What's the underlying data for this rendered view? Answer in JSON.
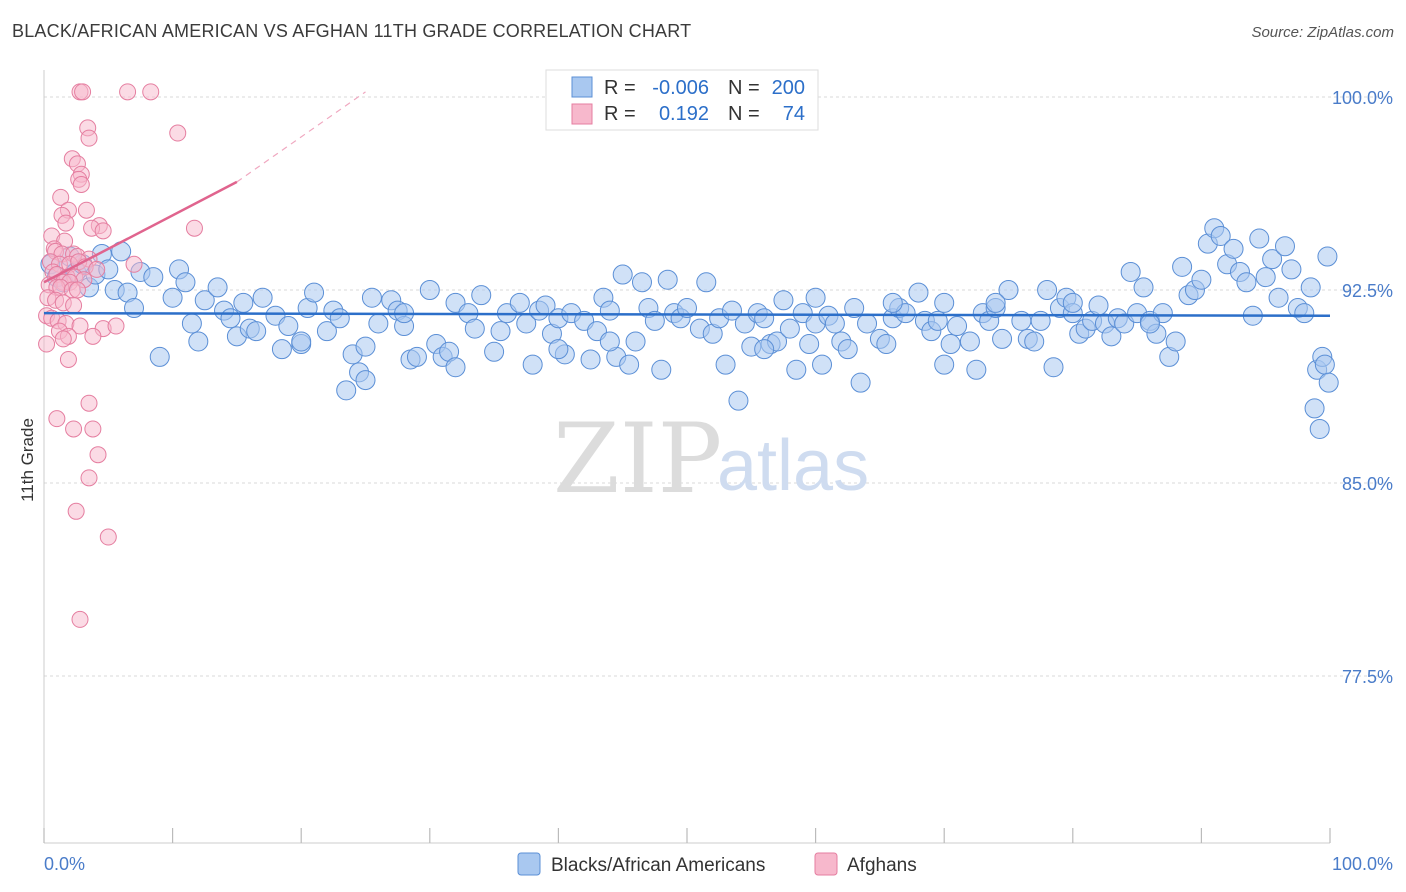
{
  "header": {
    "title": "BLACK/AFRICAN AMERICAN VS AFGHAN 11TH GRADE CORRELATION CHART",
    "source": "Source: ZipAtlas.com"
  },
  "watermark": {
    "zip": "ZIP",
    "atlas": "atlas"
  },
  "colors": {
    "blue_fill": "#a9c8f0",
    "blue_stroke": "#5b8fd6",
    "blue_line": "#2c6fc9",
    "pink_fill": "#f7b8cc",
    "pink_stroke": "#e57ea0",
    "pink_line": "#e0648e",
    "axis_text": "#4a7cc9",
    "grid": "#d9d9d9"
  },
  "legend": {
    "rows": [
      {
        "r_label": "R =",
        "r_value": "-0.006",
        "n_label": "N =",
        "n_value": "200"
      },
      {
        "r_label": "R =",
        "r_value": "0.192",
        "n_label": "N =",
        "n_value": "74"
      }
    ]
  },
  "chart_data": {
    "type": "scatter",
    "title": "BLACK/AFRICAN AMERICAN VS AFGHAN 11TH GRADE CORRELATION CHART",
    "xlabel": "",
    "ylabel": "11th Grade",
    "xlim": [
      0,
      100
    ],
    "ylim": [
      71.5,
      101.5
    ],
    "x_tick_labels": [
      "0.0%",
      "100.0%"
    ],
    "y_ticks": [
      77.5,
      85.0,
      92.5,
      100.0
    ],
    "y_tick_labels": [
      "77.5%",
      "85.0%",
      "92.5%",
      "100.0%"
    ],
    "series": [
      {
        "name": "Blacks/African Americans",
        "r": -0.006,
        "n": 200,
        "trend": {
          "x": [
            0,
            100
          ],
          "y": [
            91.6,
            91.5
          ]
        },
        "points": [
          [
            0.5,
            93.5
          ],
          [
            1.0,
            93.0
          ],
          [
            1.5,
            92.8
          ],
          [
            2.0,
            93.8
          ],
          [
            2.5,
            93.2
          ],
          [
            3.0,
            93.5
          ],
          [
            3.5,
            92.6
          ],
          [
            4.0,
            93.1
          ],
          [
            4.5,
            93.9
          ],
          [
            5.0,
            93.3
          ],
          [
            5.5,
            92.5
          ],
          [
            6.0,
            94.0
          ],
          [
            6.5,
            92.4
          ],
          [
            7.0,
            91.8
          ],
          [
            7.5,
            93.2
          ],
          [
            8.5,
            93.0
          ],
          [
            9.0,
            89.9
          ],
          [
            10.0,
            92.2
          ],
          [
            10.5,
            93.3
          ],
          [
            11.0,
            92.8
          ],
          [
            11.5,
            91.2
          ],
          [
            12.0,
            90.5
          ],
          [
            12.5,
            92.1
          ],
          [
            13.5,
            92.6
          ],
          [
            14.0,
            91.7
          ],
          [
            14.5,
            91.4
          ],
          [
            15.0,
            90.7
          ],
          [
            15.5,
            92.0
          ],
          [
            16.0,
            91.0
          ],
          [
            16.5,
            90.9
          ],
          [
            17.0,
            92.2
          ],
          [
            18.0,
            91.5
          ],
          [
            18.5,
            90.2
          ],
          [
            19.0,
            91.1
          ],
          [
            20.0,
            90.4
          ],
          [
            20.5,
            91.8
          ],
          [
            21.0,
            92.4
          ],
          [
            22.0,
            90.9
          ],
          [
            22.5,
            91.7
          ],
          [
            23.0,
            91.4
          ],
          [
            23.5,
            88.6
          ],
          [
            24.0,
            90.0
          ],
          [
            24.5,
            89.3
          ],
          [
            25.0,
            90.3
          ],
          [
            25.5,
            92.2
          ],
          [
            26.0,
            91.2
          ],
          [
            27.0,
            92.1
          ],
          [
            27.5,
            91.7
          ],
          [
            28.0,
            91.1
          ],
          [
            28.5,
            89.8
          ],
          [
            29.0,
            89.9
          ],
          [
            30.0,
            92.5
          ],
          [
            30.5,
            90.4
          ],
          [
            31.0,
            89.9
          ],
          [
            31.5,
            90.1
          ],
          [
            32.0,
            92.0
          ],
          [
            33.0,
            91.6
          ],
          [
            33.5,
            91.0
          ],
          [
            34.0,
            92.3
          ],
          [
            35.0,
            90.1
          ],
          [
            35.5,
            90.9
          ],
          [
            36.0,
            91.6
          ],
          [
            37.0,
            92.0
          ],
          [
            37.5,
            91.2
          ],
          [
            38.0,
            89.6
          ],
          [
            38.5,
            91.7
          ],
          [
            39.0,
            91.9
          ],
          [
            39.5,
            90.8
          ],
          [
            40.0,
            91.4
          ],
          [
            40.5,
            90.0
          ],
          [
            41.0,
            91.6
          ],
          [
            42.0,
            91.3
          ],
          [
            42.5,
            89.8
          ],
          [
            43.0,
            90.9
          ],
          [
            43.5,
            92.2
          ],
          [
            44.0,
            91.7
          ],
          [
            44.5,
            89.9
          ],
          [
            45.0,
            93.1
          ],
          [
            45.5,
            89.6
          ],
          [
            46.0,
            90.5
          ],
          [
            46.5,
            92.8
          ],
          [
            47.0,
            91.8
          ],
          [
            47.5,
            91.3
          ],
          [
            48.0,
            89.4
          ],
          [
            48.5,
            92.9
          ],
          [
            49.0,
            91.6
          ],
          [
            49.5,
            91.4
          ],
          [
            50.0,
            91.8
          ],
          [
            51.0,
            91.0
          ],
          [
            51.5,
            92.8
          ],
          [
            52.0,
            90.8
          ],
          [
            52.5,
            91.4
          ],
          [
            53.0,
            89.6
          ],
          [
            53.5,
            91.7
          ],
          [
            54.0,
            88.2
          ],
          [
            54.5,
            91.2
          ],
          [
            55.0,
            90.3
          ],
          [
            55.5,
            91.6
          ],
          [
            56.0,
            91.4
          ],
          [
            56.5,
            90.4
          ],
          [
            57.0,
            90.5
          ],
          [
            57.5,
            92.1
          ],
          [
            58.0,
            91.0
          ],
          [
            58.5,
            89.4
          ],
          [
            59.0,
            91.6
          ],
          [
            59.5,
            90.4
          ],
          [
            60.0,
            91.2
          ],
          [
            60.5,
            89.6
          ],
          [
            61.0,
            91.5
          ],
          [
            61.5,
            91.2
          ],
          [
            62.0,
            90.5
          ],
          [
            62.5,
            90.2
          ],
          [
            63.0,
            91.8
          ],
          [
            63.5,
            88.9
          ],
          [
            64.0,
            91.2
          ],
          [
            65.0,
            90.6
          ],
          [
            65.5,
            90.4
          ],
          [
            66.0,
            91.4
          ],
          [
            66.5,
            91.8
          ],
          [
            67.0,
            91.6
          ],
          [
            68.0,
            92.4
          ],
          [
            68.5,
            91.3
          ],
          [
            69.0,
            90.9
          ],
          [
            69.5,
            91.3
          ],
          [
            70.0,
            89.6
          ],
          [
            70.5,
            90.4
          ],
          [
            71.0,
            91.1
          ],
          [
            72.0,
            90.5
          ],
          [
            72.5,
            89.4
          ],
          [
            73.0,
            91.6
          ],
          [
            73.5,
            91.3
          ],
          [
            74.0,
            91.8
          ],
          [
            74.5,
            90.6
          ],
          [
            75.0,
            92.5
          ],
          [
            76.0,
            91.3
          ],
          [
            76.5,
            90.6
          ],
          [
            77.0,
            90.5
          ],
          [
            77.5,
            91.3
          ],
          [
            78.0,
            92.5
          ],
          [
            78.5,
            89.5
          ],
          [
            79.0,
            91.8
          ],
          [
            79.5,
            92.2
          ],
          [
            80.0,
            91.6
          ],
          [
            80.5,
            90.8
          ],
          [
            81.0,
            91.0
          ],
          [
            81.5,
            91.3
          ],
          [
            82.0,
            91.9
          ],
          [
            82.5,
            91.2
          ],
          [
            83.0,
            90.7
          ],
          [
            83.5,
            91.4
          ],
          [
            84.0,
            91.2
          ],
          [
            84.5,
            93.2
          ],
          [
            85.0,
            91.6
          ],
          [
            85.5,
            92.6
          ],
          [
            86.0,
            91.3
          ],
          [
            86.5,
            90.8
          ],
          [
            87.0,
            91.6
          ],
          [
            87.5,
            89.9
          ],
          [
            88.0,
            90.5
          ],
          [
            88.5,
            93.4
          ],
          [
            89.0,
            92.3
          ],
          [
            89.5,
            92.5
          ],
          [
            90.0,
            92.9
          ],
          [
            90.5,
            94.3
          ],
          [
            91.0,
            94.9
          ],
          [
            91.5,
            94.6
          ],
          [
            92.0,
            93.5
          ],
          [
            92.5,
            94.1
          ],
          [
            93.0,
            93.2
          ],
          [
            93.5,
            92.8
          ],
          [
            94.0,
            91.5
          ],
          [
            94.5,
            94.5
          ],
          [
            95.0,
            93.0
          ],
          [
            95.5,
            93.7
          ],
          [
            96.0,
            92.2
          ],
          [
            96.5,
            94.2
          ],
          [
            97.0,
            93.3
          ],
          [
            97.5,
            91.8
          ],
          [
            98.0,
            91.6
          ],
          [
            98.5,
            92.6
          ],
          [
            98.8,
            87.9
          ],
          [
            99.0,
            89.4
          ],
          [
            99.2,
            87.1
          ],
          [
            99.4,
            89.9
          ],
          [
            99.6,
            89.6
          ],
          [
            99.8,
            93.8
          ],
          [
            99.9,
            88.9
          ],
          [
            20.0,
            90.5
          ],
          [
            32.0,
            89.5
          ],
          [
            40.0,
            90.2
          ],
          [
            25.0,
            89.0
          ],
          [
            28.0,
            91.6
          ],
          [
            44.0,
            90.5
          ],
          [
            56.0,
            90.2
          ],
          [
            60.0,
            92.2
          ],
          [
            66.0,
            92.0
          ],
          [
            70.0,
            92.0
          ],
          [
            74.0,
            92.0
          ],
          [
            80.0,
            92.0
          ],
          [
            86.0,
            91.2
          ]
        ]
      },
      {
        "name": "Afghans",
        "r": 0.192,
        "n": 74,
        "trend_solid": {
          "x": [
            0,
            15
          ],
          "y": [
            92.8,
            96.7
          ]
        },
        "trend_dashed": {
          "x": [
            15,
            25
          ],
          "y": [
            96.7,
            100.2
          ]
        },
        "points": [
          [
            2.8,
            100.2
          ],
          [
            3.0,
            100.2
          ],
          [
            6.5,
            100.2
          ],
          [
            8.3,
            100.2
          ],
          [
            3.4,
            98.8
          ],
          [
            3.5,
            98.4
          ],
          [
            10.4,
            98.6
          ],
          [
            2.2,
            97.6
          ],
          [
            2.6,
            97.4
          ],
          [
            2.9,
            97.0
          ],
          [
            2.7,
            96.8
          ],
          [
            2.9,
            96.6
          ],
          [
            1.3,
            96.1
          ],
          [
            1.9,
            95.6
          ],
          [
            3.3,
            95.6
          ],
          [
            1.4,
            95.4
          ],
          [
            1.7,
            95.1
          ],
          [
            4.3,
            95.0
          ],
          [
            3.7,
            94.9
          ],
          [
            4.6,
            94.8
          ],
          [
            11.7,
            94.9
          ],
          [
            0.6,
            94.6
          ],
          [
            1.6,
            94.4
          ],
          [
            0.8,
            94.1
          ],
          [
            0.9,
            94.0
          ],
          [
            1.4,
            93.9
          ],
          [
            2.3,
            93.9
          ],
          [
            2.6,
            93.8
          ],
          [
            3.5,
            93.7
          ],
          [
            0.5,
            93.6
          ],
          [
            1.2,
            93.5
          ],
          [
            2.0,
            93.5
          ],
          [
            2.7,
            93.6
          ],
          [
            3.2,
            93.4
          ],
          [
            4.1,
            93.3
          ],
          [
            0.7,
            93.2
          ],
          [
            1.0,
            93.1
          ],
          [
            1.8,
            93.0
          ],
          [
            2.4,
            93.0
          ],
          [
            3.1,
            92.9
          ],
          [
            1.5,
            92.8
          ],
          [
            2.0,
            92.8
          ],
          [
            0.4,
            92.7
          ],
          [
            1.0,
            92.6
          ],
          [
            1.3,
            92.6
          ],
          [
            2.2,
            92.5
          ],
          [
            2.6,
            92.5
          ],
          [
            0.3,
            92.2
          ],
          [
            0.9,
            92.1
          ],
          [
            1.5,
            92.0
          ],
          [
            2.3,
            91.9
          ],
          [
            0.2,
            91.5
          ],
          [
            0.6,
            91.4
          ],
          [
            1.1,
            91.3
          ],
          [
            1.7,
            91.2
          ],
          [
            2.8,
            91.1
          ],
          [
            4.6,
            91.0
          ],
          [
            5.6,
            91.1
          ],
          [
            1.2,
            90.9
          ],
          [
            1.9,
            90.7
          ],
          [
            3.8,
            90.7
          ],
          [
            1.5,
            90.6
          ],
          [
            0.2,
            90.4
          ],
          [
            1.9,
            89.8
          ],
          [
            3.5,
            88.1
          ],
          [
            1.0,
            87.5
          ],
          [
            2.3,
            87.1
          ],
          [
            3.8,
            87.1
          ],
          [
            4.2,
            86.1
          ],
          [
            3.5,
            85.2
          ],
          [
            2.5,
            83.9
          ],
          [
            5.0,
            82.9
          ],
          [
            2.8,
            79.7
          ],
          [
            7.0,
            93.5
          ]
        ]
      }
    ]
  },
  "bottom_legend": [
    "Blacks/African Americans",
    "Afghans"
  ]
}
